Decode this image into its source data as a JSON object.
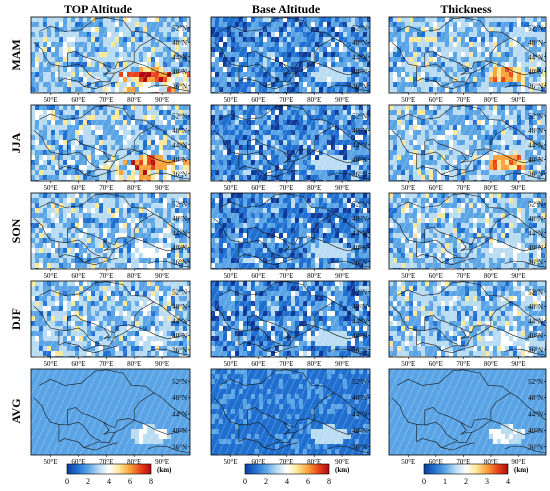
{
  "chart_data": {
    "type": "heatmap",
    "columns": [
      {
        "title": "TOP Altitude",
        "colorbar": {
          "ticks": [
            "0",
            "2",
            "4",
            "6",
            "8"
          ],
          "range": [
            0,
            8
          ],
          "unit": "(km)"
        }
      },
      {
        "title": "Base Altitude",
        "colorbar": {
          "ticks": [
            "0",
            "2",
            "4",
            "6",
            "8"
          ],
          "range": [
            0,
            8
          ],
          "unit": "(km)"
        }
      },
      {
        "title": "Thickness",
        "colorbar": {
          "ticks": [
            "0",
            "1",
            "2",
            "3",
            "4"
          ],
          "range": [
            0,
            4
          ],
          "unit": "(km)"
        }
      }
    ],
    "rows": [
      "MAM",
      "JJA",
      "SON",
      "DJF",
      "AVG"
    ],
    "lon_ticks": [
      "50°E",
      "60°E",
      "70°E",
      "80°E",
      "90°E"
    ],
    "lat_ticks": [
      "52°N",
      "48°N",
      "44°N",
      "40°N",
      "36°N"
    ],
    "lon_range": [
      43,
      100
    ],
    "lat_range": [
      34,
      55
    ],
    "colormap": [
      "#0d3c9c",
      "#1f6fd0",
      "#5aa4e6",
      "#b9dcf3",
      "#ffffff",
      "#fde89a",
      "#f9a13a",
      "#e8421a",
      "#b0080e"
    ]
  }
}
